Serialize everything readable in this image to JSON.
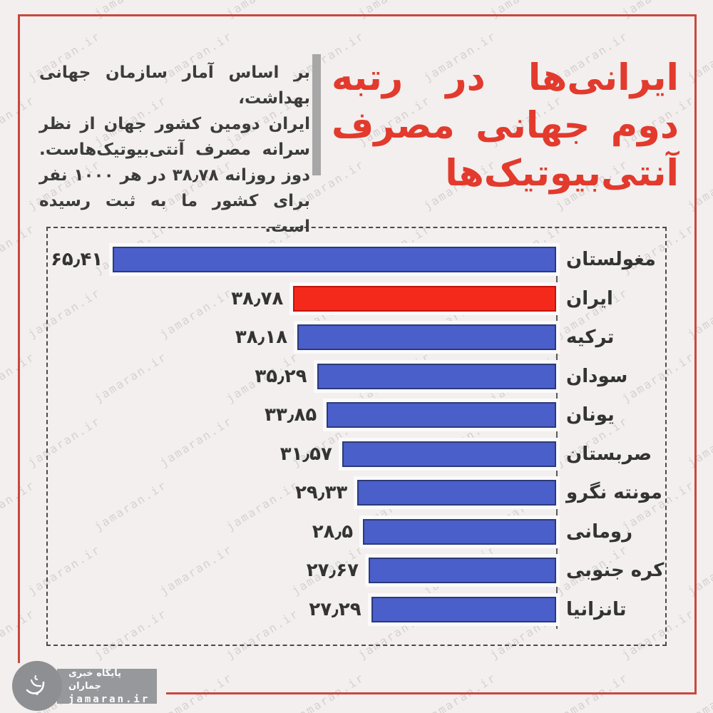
{
  "watermark": {
    "text": "jamaran.ir"
  },
  "header": {
    "title_lines": [
      "ایرانی‌ها در رتبه",
      "دوم جهانی مصرف",
      "آنتی‌بیوتیک‌ها"
    ],
    "body_lines": [
      "بر اساس آمار سازمان جهانی بهداشت،",
      "ایران دومین کشور جهان از نظر",
      "سرانه مصرف آنتی‌بیوتیک‌هاست.",
      "دوز روزانه ۳۸٫۷۸ در هر ۱۰۰۰ نفر",
      "برای کشور ما به ثبت رسیده است."
    ],
    "title_color": "#e23a2d"
  },
  "chart_data": {
    "type": "bar",
    "orientation": "horizontal_rtl",
    "categories": [
      "مغولستان",
      "ایران",
      "ترکیه",
      "سودان",
      "یونان",
      "صربستان",
      "مونته نگرو",
      "رومانی",
      "کره جنوبی",
      "تانزانیا"
    ],
    "values": [
      65.41,
      38.78,
      38.18,
      35.29,
      33.85,
      31.57,
      29.33,
      28.5,
      27.67,
      27.29
    ],
    "value_labels": [
      "۶۵٫۴۱",
      "۳۸٫۷۸",
      "۳۸٫۱۸",
      "۳۵٫۲۹",
      "۳۳٫۸۵",
      "۳۱٫۵۷",
      "۲۹٫۳۳",
      "۲۸٫۵",
      "۲۷٫۶۷",
      "۲۷٫۲۹"
    ],
    "highlight_index": 1,
    "bar_color": "#4a5fca",
    "highlight_color": "#f4291c",
    "xlim": [
      0,
      70
    ],
    "grid": false,
    "legend": false,
    "title": ""
  },
  "footer": {
    "logo_title": "پایگاه خبری جماران",
    "logo_url": "jamaran.ir"
  }
}
